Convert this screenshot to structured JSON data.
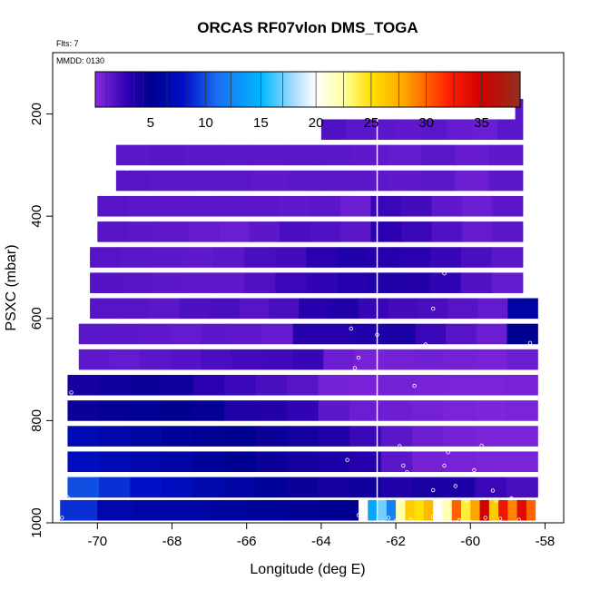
{
  "chart_data": {
    "type": "heatmap",
    "title": "ORCAS RF07vlon DMS_TOGA",
    "flights_note": "Flts: 7",
    "date_note": "MMDD: 0130",
    "xlabel": "Longitude (deg E)",
    "ylabel": "PSXC (mbar)",
    "xlim": [
      -71.2,
      -57.5
    ],
    "ylim": [
      1000,
      80
    ],
    "y_reversed": true,
    "x_ticks": [
      -70,
      -68,
      -66,
      -64,
      -62,
      -60,
      -58
    ],
    "y_ticks": [
      200,
      400,
      600,
      800,
      1000
    ],
    "colorbar": {
      "range": [
        0,
        38.5
      ],
      "ticks": [
        5,
        10,
        15,
        20,
        25,
        30,
        35
      ],
      "stops": [
        {
          "v": 0,
          "c": "#8a2be2"
        },
        {
          "v": 3,
          "c": "#2a00b0"
        },
        {
          "v": 5,
          "c": "#000090"
        },
        {
          "v": 8,
          "c": "#0010c8"
        },
        {
          "v": 11,
          "c": "#1a6ef0"
        },
        {
          "v": 15,
          "c": "#00b8ff"
        },
        {
          "v": 18,
          "c": "#a8dcff"
        },
        {
          "v": 20,
          "c": "#ffffff"
        },
        {
          "v": 22.5,
          "c": "#ffffa0"
        },
        {
          "v": 25,
          "c": "#ffe000"
        },
        {
          "v": 28,
          "c": "#ffa500"
        },
        {
          "v": 32,
          "c": "#ff2000"
        },
        {
          "v": 35,
          "c": "#d00000"
        },
        {
          "v": 38.5,
          "c": "#903020"
        }
      ]
    },
    "vertical_line_x": -62.5,
    "levels": [
      {
        "p": 190,
        "x0": -58.8,
        "x1": -58.6,
        "values": [
          1.5
        ]
      },
      {
        "p": 230,
        "x0": -64,
        "x1": -58.6,
        "values": [
          1.8,
          1.5,
          1.4,
          1.3,
          1.5,
          1.2,
          1.0,
          1.5
        ]
      },
      {
        "p": 280,
        "x0": -69.5,
        "x1": -58.6,
        "values": [
          1.5,
          1.6,
          1.5,
          1.4,
          1.4,
          1.5,
          1.4,
          1.3,
          1.2,
          1.5,
          1.1,
          1.3
        ]
      },
      {
        "p": 330,
        "x0": -69.5,
        "x1": -58.6,
        "values": [
          1.6,
          1.5,
          1.4,
          1.5,
          1.3,
          1.4,
          1.5,
          1.4,
          1.3,
          1.5,
          1.0,
          1.4
        ]
      },
      {
        "p": 380,
        "x0": -70,
        "x1": -58.6,
        "values": [
          1.6,
          1.5,
          1.4,
          1.5,
          1.5,
          1.4,
          1.3,
          1.5,
          1.0,
          2.5,
          2.2,
          1.3,
          1.0,
          1.4
        ]
      },
      {
        "p": 430,
        "x0": -70,
        "x1": -58.6,
        "values": [
          1.6,
          1.4,
          1.3,
          1.2,
          1.0,
          1.4,
          2.0,
          1.8,
          1.5,
          3.0,
          2.5,
          1.8,
          1.2,
          1.5
        ]
      },
      {
        "p": 480,
        "x0": -70.2,
        "x1": -58.6,
        "values": [
          1.6,
          1.5,
          1.4,
          1.3,
          1.5,
          2.0,
          2.2,
          3.0,
          3.5,
          3.2,
          3.0,
          2.6,
          2.0,
          1.5
        ]
      },
      {
        "p": 530,
        "x0": -70.2,
        "x1": -58.6,
        "values": [
          1.7,
          1.6,
          1.4,
          1.3,
          1.3,
          1.8,
          2.5,
          2.8,
          3.2,
          3.5,
          3.3,
          2.8,
          1.8,
          1.2
        ]
      },
      {
        "p": 580,
        "x0": -70.2,
        "x1": -58.2,
        "values": [
          1.6,
          1.6,
          1.5,
          1.9,
          2.0,
          1.6,
          2.0,
          3.2,
          3.5,
          2.6,
          2.2,
          2.0,
          1.6,
          1.2,
          6.0
        ]
      },
      {
        "p": 630,
        "x0": -70.5,
        "x1": -58.2,
        "values": [
          1.5,
          1.4,
          1.3,
          1.2,
          1.4,
          1.3,
          1.1,
          3.2,
          3.2,
          3.5,
          3.8,
          2.5,
          1.6,
          1.0,
          5.0
        ]
      },
      {
        "p": 680,
        "x0": -70.5,
        "x1": -58.2,
        "values": [
          1.3,
          1.2,
          1.5,
          1.7,
          2.0,
          2.2,
          2.3,
          2.6,
          1.0,
          0.6,
          0.7,
          0.8,
          0.7,
          0.6,
          1.0
        ]
      },
      {
        "p": 730,
        "x0": -70.8,
        "x1": -58.2,
        "values": [
          4.0,
          4.2,
          4.5,
          4.2,
          3.0,
          2.5,
          2.0,
          1.6,
          0.7,
          0.6,
          0.7,
          0.6,
          0.5,
          0.5,
          0.6
        ]
      },
      {
        "p": 780,
        "x0": -70.8,
        "x1": -58.2,
        "values": [
          4.5,
          4.8,
          5.2,
          5.0,
          4.8,
          3.5,
          3.3,
          2.8,
          1.4,
          1.0,
          0.9,
          0.7,
          0.5,
          0.4,
          0.5
        ]
      },
      {
        "p": 830,
        "x0": -70.8,
        "x1": -58.2,
        "values": [
          7.0,
          6.5,
          6.0,
          5.5,
          5.2,
          5.0,
          4.5,
          4.0,
          3.5,
          2.5,
          1.5,
          1.0,
          0.7,
          0.5,
          0.5
        ]
      },
      {
        "p": 880,
        "x0": -70.8,
        "x1": -58.2,
        "values": [
          7.5,
          7.0,
          6.5,
          6.0,
          5.5,
          5.0,
          4.5,
          4.0,
          3.6,
          3.2,
          1.5,
          0.7,
          0.6,
          0.5,
          0.5
        ]
      },
      {
        "p": 930,
        "x0": -70.8,
        "x1": -58.2,
        "values": [
          10.0,
          9.0,
          8.0,
          7.5,
          6.5,
          6.0,
          5.5,
          4.5,
          4.0,
          4.2,
          3.5,
          3.8,
          3.6,
          2.5,
          2.0
        ]
      },
      {
        "p": 975,
        "x0": -71,
        "x1": -63,
        "values": [
          9.0,
          6.5,
          6.0,
          6.2,
          5.8,
          5.5,
          5.2,
          5.0
        ]
      },
      {
        "p": 975,
        "x0": -63,
        "x1": -58,
        "values": [
          20,
          14,
          17,
          12,
          22,
          26,
          25,
          27,
          20,
          22,
          30,
          24,
          28,
          35,
          26,
          33,
          29,
          34,
          30,
          20
        ]
      }
    ],
    "points": [
      {
        "lon": -69.2,
        "p": 307
      },
      {
        "lon": -70.6,
        "p": 673
      },
      {
        "lon": -70.7,
        "p": 745
      },
      {
        "lon": -70.9,
        "p": 818
      },
      {
        "lon": -70.8,
        "p": 950
      },
      {
        "lon": -70.95,
        "p": 990
      },
      {
        "lon": -63.2,
        "p": 620
      },
      {
        "lon": -63.0,
        "p": 677
      },
      {
        "lon": -63.1,
        "p": 697
      },
      {
        "lon": -62.5,
        "p": 632
      },
      {
        "lon": -61.5,
        "p": 732
      },
      {
        "lon": -61.2,
        "p": 651
      },
      {
        "lon": -61.0,
        "p": 581
      },
      {
        "lon": -60.7,
        "p": 512
      },
      {
        "lon": -63.3,
        "p": 877
      },
      {
        "lon": -61.9,
        "p": 850
      },
      {
        "lon": -61.8,
        "p": 888
      },
      {
        "lon": -61.7,
        "p": 901
      },
      {
        "lon": -60.7,
        "p": 888
      },
      {
        "lon": -60.6,
        "p": 862
      },
      {
        "lon": -59.9,
        "p": 897
      },
      {
        "lon": -60.1,
        "p": 855
      },
      {
        "lon": -59.7,
        "p": 849
      },
      {
        "lon": -59.4,
        "p": 937
      },
      {
        "lon": -60.4,
        "p": 928
      },
      {
        "lon": -59.3,
        "p": 957
      },
      {
        "lon": -58.9,
        "p": 952
      },
      {
        "lon": -61.0,
        "p": 936
      },
      {
        "lon": -60.1,
        "p": 955
      },
      {
        "lon": -58.4,
        "p": 648
      },
      {
        "lon": -58.85,
        "p": 186
      },
      {
        "lon": -62.2,
        "p": 990
      },
      {
        "lon": -61.6,
        "p": 994
      },
      {
        "lon": -61.0,
        "p": 988
      },
      {
        "lon": -59.6,
        "p": 990
      },
      {
        "lon": -59.2,
        "p": 992
      },
      {
        "lon": -58.7,
        "p": 994
      },
      {
        "lon": -63.0,
        "p": 985
      },
      {
        "lon": -62.0,
        "p": 996
      },
      {
        "lon": -60.3,
        "p": 995
      }
    ]
  }
}
